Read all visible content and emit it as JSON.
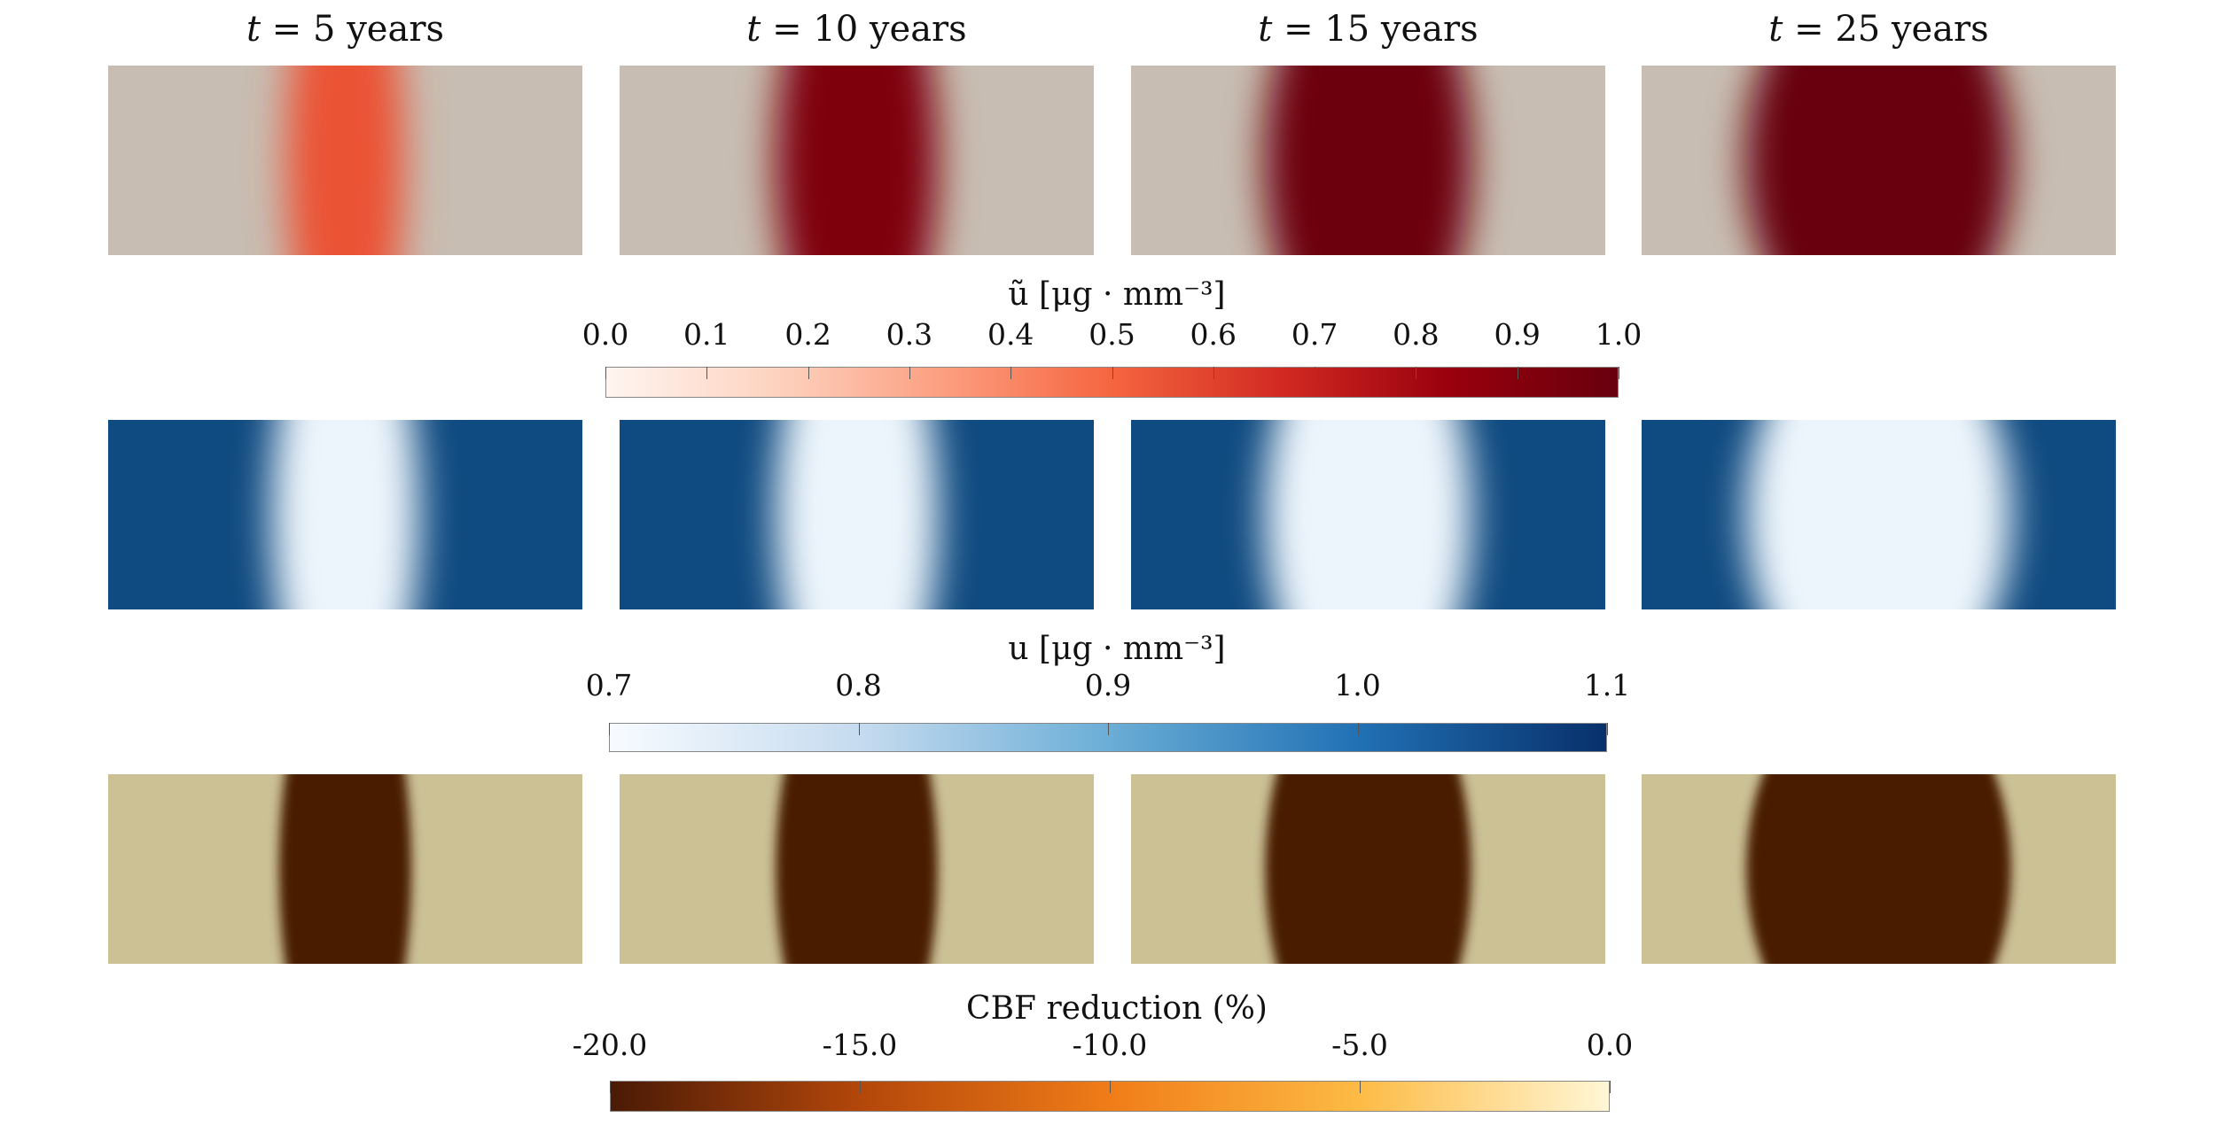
{
  "column_titles": [
    {
      "var": "t",
      "eq": " = 5 years"
    },
    {
      "var": "t",
      "eq": " = 10 years"
    },
    {
      "var": "t",
      "eq": " = 15 years"
    },
    {
      "var": "t",
      "eq": " = 25 years"
    }
  ],
  "rows": [
    {
      "name": "u-tilde",
      "background": "#c8bdb2",
      "panels": [
        {
          "level": 0.55,
          "extent": 0.4
        },
        {
          "level": 0.92,
          "extent": 0.55
        },
        {
          "level": 0.98,
          "extent": 0.7
        },
        {
          "level": 1.0,
          "extent": 0.9
        }
      ]
    },
    {
      "name": "u",
      "background": "#0f4a80",
      "panels": [
        {
          "level": 0.72,
          "extent": 0.5
        },
        {
          "level": 0.72,
          "extent": 0.55
        },
        {
          "level": 0.72,
          "extent": 0.7
        },
        {
          "level": 0.72,
          "extent": 0.9
        }
      ]
    },
    {
      "name": "cbf",
      "background": "#cbc195",
      "panels": [
        {
          "level": -20.0,
          "extent": 0.45
        },
        {
          "level": -20.0,
          "extent": 0.55
        },
        {
          "level": -20.0,
          "extent": 0.7
        },
        {
          "level": -20.0,
          "extent": 0.9
        }
      ]
    }
  ],
  "colorbars": [
    {
      "title": "ũ [μg · mm⁻³]",
      "ticks": [
        "0.0",
        "0.1",
        "0.2",
        "0.3",
        "0.4",
        "0.5",
        "0.6",
        "0.7",
        "0.8",
        "0.9",
        "1.0"
      ],
      "colors": [
        "#fff5f0",
        "#fdd3c0",
        "#fc9e80",
        "#f5653f",
        "#d22a22",
        "#99000d",
        "#67000d"
      ]
    },
    {
      "title": "u [μg · mm⁻³]",
      "ticks": [
        "0.7",
        "0.8",
        "0.9",
        "1.0",
        "1.1"
      ],
      "colors": [
        "#f7fbff",
        "#c6dbef",
        "#6baed6",
        "#2171b5",
        "#08306b"
      ]
    },
    {
      "title": "CBF reduction (%)",
      "ticks": [
        "-20.0",
        "-15.0",
        "-10.0",
        "-5.0",
        "0.0"
      ],
      "colors": [
        "#4a1a06",
        "#b3470a",
        "#f07c18",
        "#fdbb45",
        "#fff7d6"
      ]
    }
  ]
}
